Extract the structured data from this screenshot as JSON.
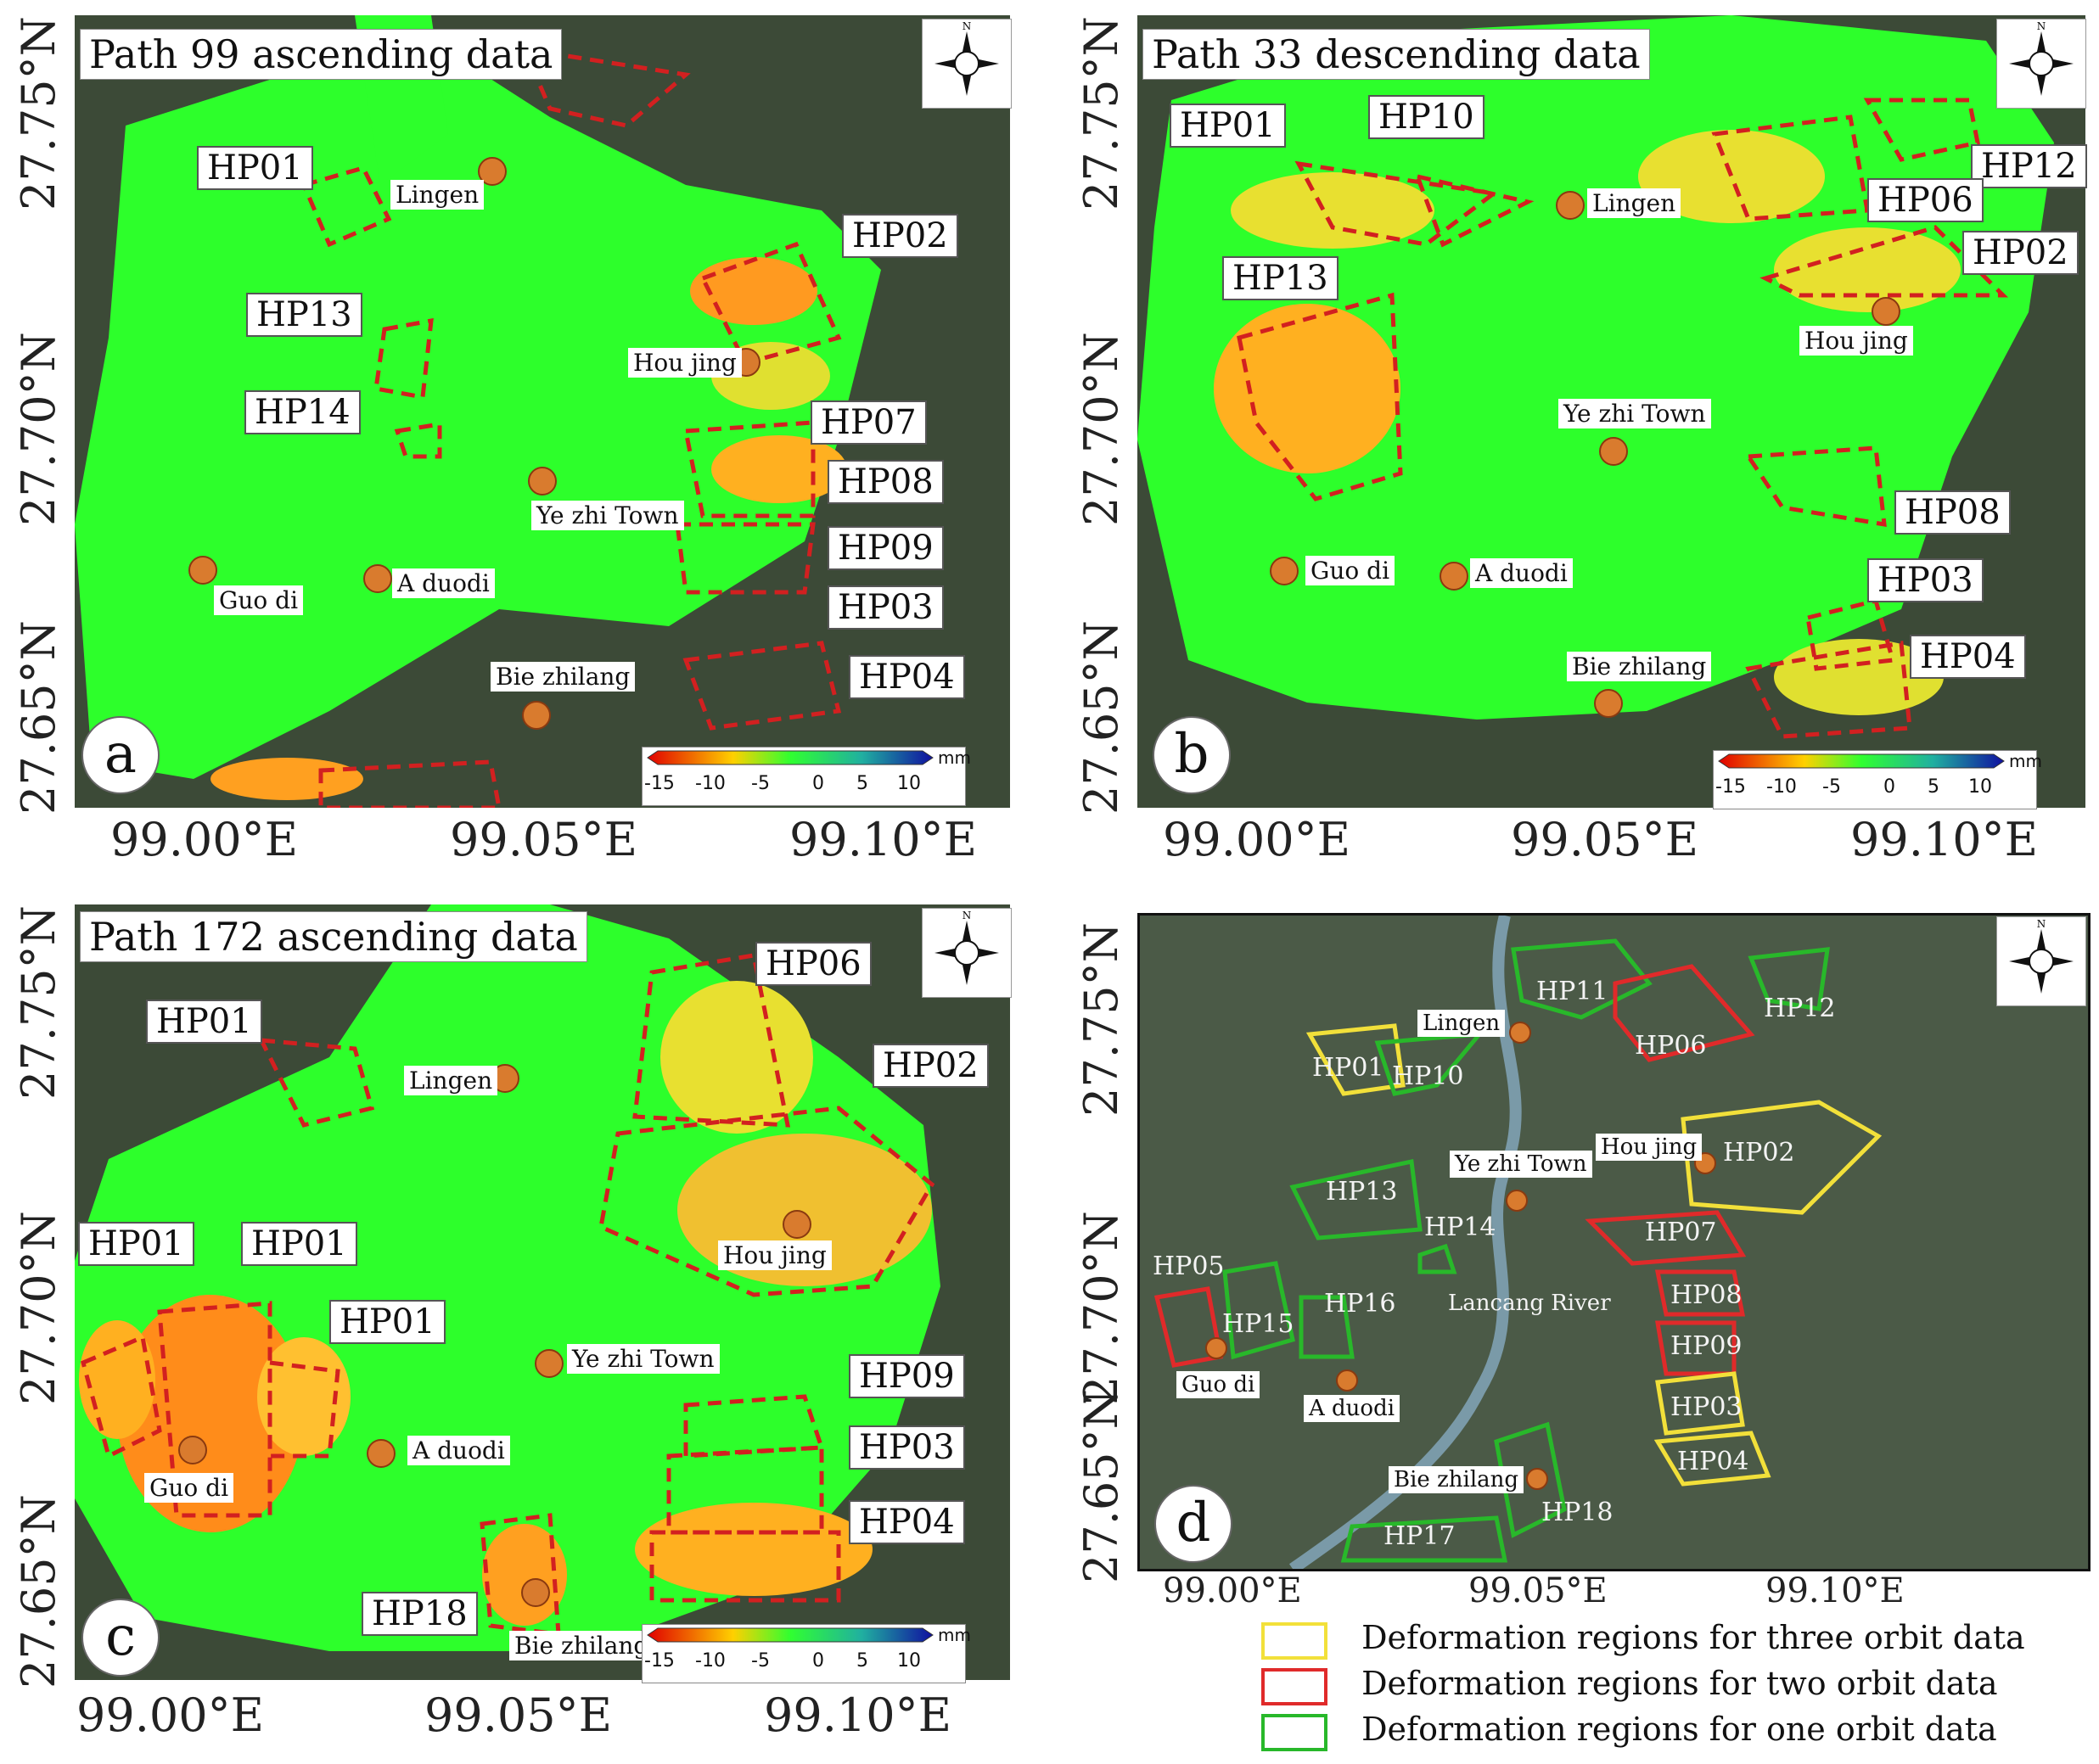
{
  "colors": {
    "stable": "#2dff2b",
    "deformation_red": "#d22020",
    "three_orbit": "#f2e03a",
    "two_orbit": "#e02a2a",
    "one_orbit": "#28b82a",
    "place_marker": "#d97b2e"
  },
  "compass_label": "N",
  "colorbar": {
    "unit": "mm",
    "ticks": [
      "-15",
      "-10",
      "-5",
      "0",
      "5",
      "10"
    ]
  },
  "panels": [
    {
      "letter": "a",
      "title": "Path 99 ascending data",
      "y_ticks": [
        "27.75°N",
        "27.70°N",
        "27.65°N"
      ],
      "x_ticks": [
        "99.00°E",
        "99.05°E",
        "99.10°E"
      ],
      "hp_labels": [
        "HP01",
        "HP02",
        "HP13",
        "HP14",
        "HP07",
        "HP08",
        "HP09",
        "HP03",
        "HP04"
      ],
      "places": [
        "Lingen",
        "Hou jing",
        "Ye zhi Town",
        "Guo di",
        "A duodi",
        "Bie zhilang"
      ]
    },
    {
      "letter": "b",
      "title": "Path 33 descending data",
      "y_ticks": [
        "27.75°N",
        "27.70°N",
        "27.65°N"
      ],
      "x_ticks": [
        "99.00°E",
        "99.05°E",
        "99.10°E"
      ],
      "hp_labels": [
        "HP01",
        "HP10",
        "HP12",
        "HP06",
        "HP02",
        "HP13",
        "HP08",
        "HP03",
        "HP04"
      ],
      "places": [
        "Lingen",
        "Hou jing",
        "Ye zhi Town",
        "Guo di",
        "A duodi",
        "Bie zhilang"
      ]
    },
    {
      "letter": "c",
      "title": "Path 172 ascending data",
      "y_ticks": [
        "27.75°N",
        "27.70°N",
        "27.65°N"
      ],
      "x_ticks": [
        "99.00°E",
        "99.05°E",
        "99.10°E"
      ],
      "hp_labels": [
        "HP06",
        "HP01",
        "HP02",
        "HP01",
        "HP01",
        "HP01",
        "HP09",
        "HP03",
        "HP04",
        "HP18"
      ],
      "places": [
        "Lingen",
        "Hou jing",
        "Ye zhi Town",
        "Guo di",
        "A duodi",
        "Bie zhilang"
      ]
    },
    {
      "letter": "d",
      "y_ticks": [
        "27.75°N",
        "27.70°N",
        "27.65°N"
      ],
      "x_ticks": [
        "99.00°E",
        "99.05°E",
        "99.10°E"
      ],
      "hp_labels": [
        "HP11",
        "HP12",
        "HP06",
        "HP01",
        "HP10",
        "HP02",
        "HP13",
        "HP14",
        "HP07",
        "HP05",
        "HP15",
        "HP16",
        "HP08",
        "HP09",
        "HP03",
        "HP04",
        "HP18",
        "HP17"
      ],
      "places": [
        "Lingen",
        "Hou jing",
        "Ye zhi Town",
        "Lancang River",
        "Guo di",
        "A duodi",
        "Bie zhilang"
      ]
    }
  ],
  "legend": [
    {
      "label": "Deformation regions for three orbit data",
      "color": "#f2e03a"
    },
    {
      "label": "Deformation regions for two orbit data",
      "color": "#e02a2a"
    },
    {
      "label": "Deformation regions for one orbit data",
      "color": "#28b82a"
    }
  ]
}
